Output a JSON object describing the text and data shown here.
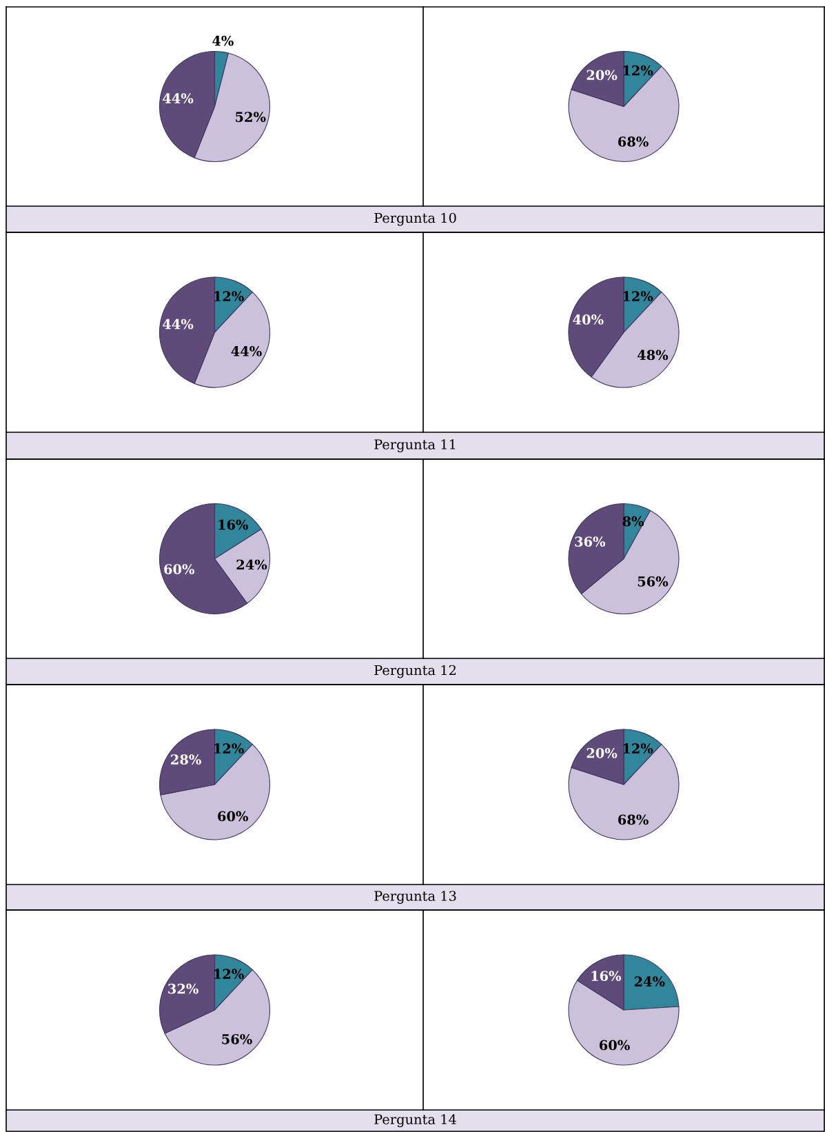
{
  "chart_data": [
    {
      "type": "pie",
      "categories": [
        null,
        null,
        null
      ],
      "values": [
        4,
        52,
        44
      ],
      "value_labels": [
        "4%",
        "52%",
        "44%"
      ],
      "colors": [
        "#31869b",
        "#ccc1da",
        "#5f4b7a"
      ],
      "annotations": [
        "Pergunta 10"
      ]
    },
    {
      "type": "pie",
      "categories": [
        null,
        null,
        null
      ],
      "values": [
        12,
        68,
        20
      ],
      "value_labels": [
        "12%",
        "68%",
        "20%"
      ],
      "colors": [
        "#31869b",
        "#ccc1da",
        "#5f4b7a"
      ]
    },
    {
      "type": "pie",
      "categories": [
        null,
        null,
        null
      ],
      "values": [
        12,
        44,
        44
      ],
      "value_labels": [
        "12%",
        "44%",
        "44%"
      ],
      "colors": [
        "#31869b",
        "#ccc1da",
        "#5f4b7a"
      ],
      "annotations": [
        "Pergunta 11"
      ]
    },
    {
      "type": "pie",
      "categories": [
        null,
        null,
        null
      ],
      "values": [
        12,
        48,
        40
      ],
      "value_labels": [
        "12%",
        "48%",
        "40%"
      ],
      "colors": [
        "#31869b",
        "#ccc1da",
        "#5f4b7a"
      ]
    },
    {
      "type": "pie",
      "categories": [
        null,
        null,
        null
      ],
      "values": [
        16,
        24,
        60
      ],
      "value_labels": [
        "16%",
        "24%",
        "60%"
      ],
      "colors": [
        "#31869b",
        "#ccc1da",
        "#5f4b7a"
      ],
      "annotations": [
        "Pergunta 12"
      ]
    },
    {
      "type": "pie",
      "categories": [
        null,
        null,
        null
      ],
      "values": [
        8,
        56,
        36
      ],
      "value_labels": [
        "8%",
        "56%",
        "36%"
      ],
      "colors": [
        "#31869b",
        "#ccc1da",
        "#5f4b7a"
      ]
    },
    {
      "type": "pie",
      "categories": [
        null,
        null,
        null
      ],
      "values": [
        12,
        60,
        28
      ],
      "value_labels": [
        "12%",
        "60%",
        "28%"
      ],
      "colors": [
        "#31869b",
        "#ccc1da",
        "#5f4b7a"
      ],
      "annotations": [
        "Pergunta 13"
      ]
    },
    {
      "type": "pie",
      "categories": [
        null,
        null,
        null
      ],
      "values": [
        12,
        68,
        20
      ],
      "value_labels": [
        "12%",
        "68%",
        "20%"
      ],
      "colors": [
        "#31869b",
        "#ccc1da",
        "#5f4b7a"
      ]
    },
    {
      "type": "pie",
      "categories": [
        null,
        null,
        null
      ],
      "values": [
        12,
        56,
        32
      ],
      "value_labels": [
        "12%",
        "56%",
        "32%"
      ],
      "colors": [
        "#31869b",
        "#ccc1da",
        "#5f4b7a"
      ],
      "annotations": [
        "Pergunta 14"
      ]
    },
    {
      "type": "pie",
      "categories": [
        null,
        null,
        null
      ],
      "values": [
        24,
        60,
        16
      ],
      "value_labels": [
        "24%",
        "60%",
        "16%"
      ],
      "colors": [
        "#31869b",
        "#ccc1da",
        "#5f4b7a"
      ]
    }
  ]
}
